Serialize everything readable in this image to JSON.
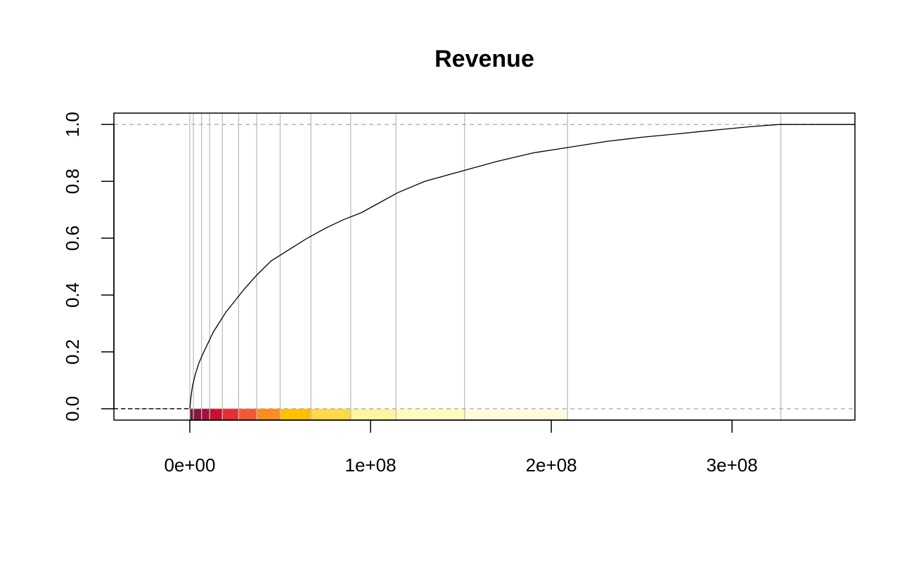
{
  "chart_data": {
    "type": "line",
    "title": "Revenue",
    "xlabel": "",
    "ylabel": "",
    "xlim": [
      -42000000,
      368000000
    ],
    "ylim": [
      -0.04,
      1.04
    ],
    "x_ticks": [
      {
        "value": 0,
        "label": "0e+00"
      },
      {
        "value": 100000000,
        "label": "1e+08"
      },
      {
        "value": 200000000,
        "label": "2e+08"
      },
      {
        "value": 300000000,
        "label": "3e+08"
      }
    ],
    "y_ticks": [
      {
        "value": 0.0,
        "label": "0.0"
      },
      {
        "value": 0.2,
        "label": "0.2"
      },
      {
        "value": 0.4,
        "label": "0.4"
      },
      {
        "value": 0.6,
        "label": "0.6"
      },
      {
        "value": 0.8,
        "label": "0.8"
      },
      {
        "value": 1.0,
        "label": "1.0"
      }
    ],
    "reference_lines_y": [
      0,
      1
    ],
    "grid": false,
    "series": [
      {
        "x": [
          0,
          600000,
          1500000,
          3000000,
          5000000,
          7000000,
          10000000,
          13000000,
          17000000,
          20000000,
          25000000,
          30000000,
          37000000,
          45000000,
          55000000,
          65000000,
          75000000,
          85000000,
          95000000,
          105000000,
          115000000,
          130000000,
          150000000,
          170000000,
          190000000,
          210000000,
          230000000,
          250000000,
          270000000,
          290000000,
          310000000,
          326000000,
          368000000
        ],
        "y": [
          0.0,
          0.04,
          0.08,
          0.12,
          0.16,
          0.19,
          0.23,
          0.27,
          0.31,
          0.34,
          0.38,
          0.42,
          0.47,
          0.52,
          0.56,
          0.6,
          0.635,
          0.665,
          0.69,
          0.725,
          0.76,
          0.8,
          0.835,
          0.87,
          0.9,
          0.92,
          0.94,
          0.955,
          0.967,
          0.98,
          0.992,
          1.0,
          1.0
        ]
      }
    ],
    "quantile_breaks": [
      0,
      2000000,
      6500000,
      11000000,
      18000000,
      27000000,
      37000000,
      50000000,
      67000000,
      89000000,
      114000000,
      152000000,
      209000000,
      327000000
    ],
    "quantile_colors": [
      "#6b1a3c",
      "#8c1638",
      "#a8103a",
      "#c8102e",
      "#e03030",
      "#f25838",
      "#fa8c20",
      "#ffc000",
      "#ffd84a",
      "#fff5a0",
      "#fffac0",
      "#fffbdc",
      "#ffffff"
    ]
  }
}
